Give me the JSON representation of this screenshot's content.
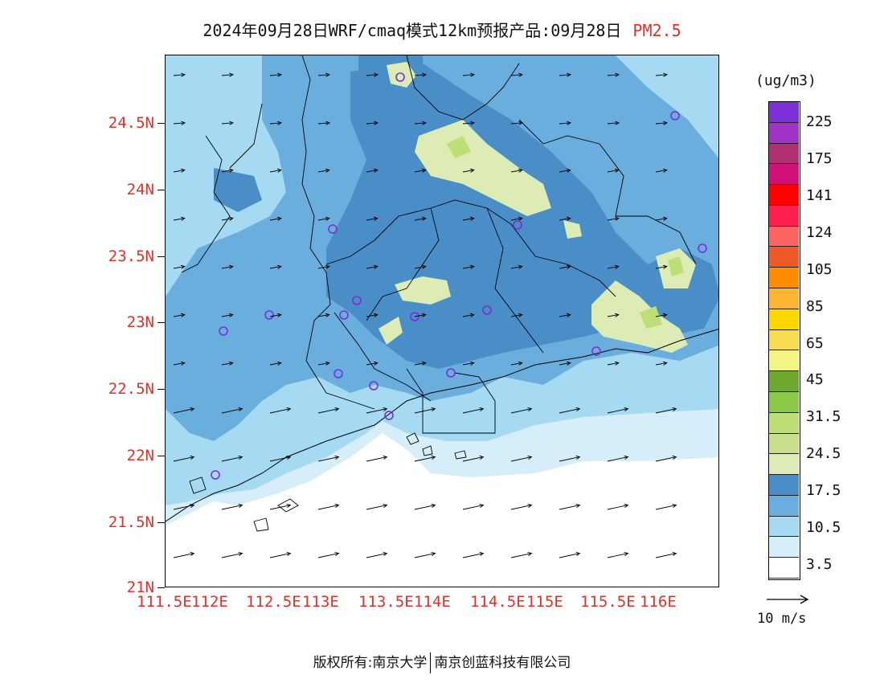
{
  "title": {
    "main": "2024年09月28日WRF/cmaq模式12km预报产品:09月28日",
    "variable": "PM2.5"
  },
  "axes": {
    "lat_labels": [
      "24.5N",
      "24N",
      "23.5N",
      "23N",
      "22.5N",
      "22N",
      "21.5N",
      "21N"
    ],
    "lon_labels": [
      "111.5E",
      "112E",
      "112.5E",
      "113E",
      "113.5E",
      "114E",
      "114.5E",
      "115E",
      "115.5E",
      "116E"
    ]
  },
  "legend": {
    "unit": "(ug/m3)",
    "levels": [
      "225",
      "175",
      "141",
      "124",
      "105",
      "85",
      "65",
      "45",
      "31.5",
      "24.5",
      "17.5",
      "10.5",
      "3.5"
    ],
    "colors_top_to_bottom": [
      "#7b2fd6",
      "#a032c8",
      "#b03070",
      "#d0107a",
      "#ff0000",
      "#ff1e50",
      "#ff6464",
      "#f05a28",
      "#ff8c00",
      "#ffb432",
      "#ffd700",
      "#f5dc50",
      "#f5f582",
      "#6ea82e",
      "#8cc84a",
      "#bede78",
      "#c8e08c",
      "#dcecb4",
      "#4a8ec8",
      "#6aaede",
      "#a6d9f2",
      "#d6eefa",
      "#ffffff"
    ],
    "wind_reference": "10 m/s"
  },
  "colors": {
    "land_base": "#a6d9f2",
    "medium": "#6aaede",
    "dark": "#4a8ec8",
    "light": "#d6eefa",
    "yellowgreen": "#dcecb4",
    "green": "#bede78",
    "station": "#7b2fd6",
    "axis_label": "#e0302a"
  },
  "footer": {
    "left": "版权所有:南京大学",
    "right": "南京创蓝科技有限公司"
  }
}
